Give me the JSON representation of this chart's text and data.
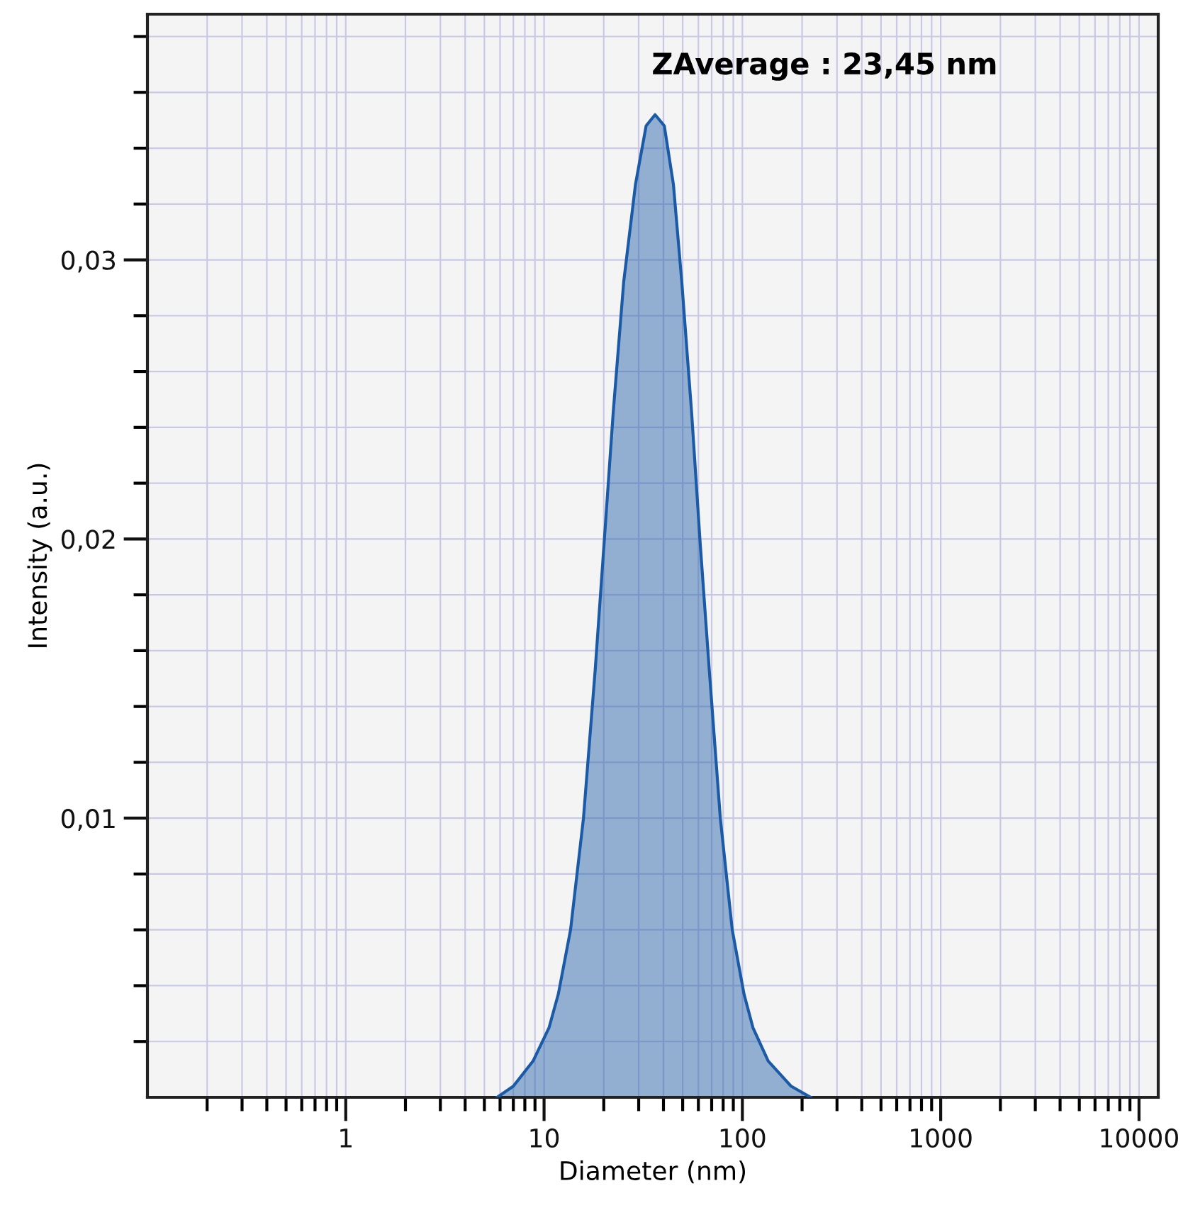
{
  "chart_data": {
    "type": "area",
    "xlabel": "Diameter (nm)",
    "ylabel": "Intensity (a.u.)",
    "annotations": [
      "ZAverage : 23,45 nm"
    ],
    "log": "x",
    "grid": true,
    "xlim": [
      0.1,
      12500
    ],
    "ylim": [
      0,
      0.0388
    ],
    "xticks": [
      {
        "value": 0.2,
        "label": null
      },
      {
        "value": 0.3,
        "label": null
      },
      {
        "value": 0.4,
        "label": null
      },
      {
        "value": 0.5,
        "label": null
      },
      {
        "value": 0.6,
        "label": null
      },
      {
        "value": 0.7,
        "label": null
      },
      {
        "value": 0.8,
        "label": null
      },
      {
        "value": 0.9,
        "label": null
      },
      1,
      {
        "value": 2,
        "label": null
      },
      {
        "value": 3,
        "label": null
      },
      {
        "value": 4,
        "label": null
      },
      {
        "value": 5,
        "label": null
      },
      {
        "value": 6,
        "label": null
      },
      {
        "value": 7,
        "label": null
      },
      {
        "value": 8,
        "label": null
      },
      {
        "value": 9,
        "label": null
      },
      10,
      {
        "value": 20,
        "label": null
      },
      {
        "value": 30,
        "label": null
      },
      {
        "value": 40,
        "label": null
      },
      {
        "value": 50,
        "label": null
      },
      {
        "value": 60,
        "label": null
      },
      {
        "value": 70,
        "label": null
      },
      {
        "value": 80,
        "label": null
      },
      {
        "value": 90,
        "label": null
      },
      100,
      {
        "value": 200,
        "label": null
      },
      {
        "value": 300,
        "label": null
      },
      {
        "value": 400,
        "label": null
      },
      {
        "value": 500,
        "label": null
      },
      {
        "value": 600,
        "label": null
      },
      {
        "value": 700,
        "label": null
      },
      {
        "value": 800,
        "label": null
      },
      {
        "value": 900,
        "label": null
      },
      1000,
      {
        "value": 2000,
        "label": null
      },
      {
        "value": 3000,
        "label": null
      },
      {
        "value": 4000,
        "label": null
      },
      {
        "value": 5000,
        "label": null
      },
      {
        "value": 6000,
        "label": null
      },
      {
        "value": 7000,
        "label": null
      },
      {
        "value": 8000,
        "label": null
      },
      {
        "value": 9000,
        "label": null
      },
      10000
    ],
    "yticks": [
      {
        "value": 0.002,
        "label": null
      },
      {
        "value": 0.004,
        "label": null
      },
      {
        "value": 0.006,
        "label": null
      },
      {
        "value": 0.008,
        "label": null
      },
      {
        "value": 0.01,
        "label": "0,01"
      },
      {
        "value": 0.012,
        "label": null
      },
      {
        "value": 0.014,
        "label": null
      },
      {
        "value": 0.016,
        "label": null
      },
      {
        "value": 0.018,
        "label": null
      },
      {
        "value": 0.02,
        "label": "0,02"
      },
      {
        "value": 0.022,
        "label": null
      },
      {
        "value": 0.024,
        "label": null
      },
      {
        "value": 0.026,
        "label": null
      },
      {
        "value": 0.028,
        "label": null
      },
      {
        "value": 0.03,
        "label": "0,03"
      },
      {
        "value": 0.032,
        "label": null
      },
      {
        "value": 0.034,
        "label": null
      },
      {
        "value": 0.036,
        "label": null
      },
      {
        "value": 0.038,
        "label": null
      }
    ],
    "x": [
      5.8,
      7.0,
      8.8,
      10.6,
      11.8,
      13.6,
      15.8,
      18.1,
      20.1,
      22.3,
      25.2,
      28.9,
      32.7,
      36.3,
      40.4,
      44.9,
      49.5,
      55.5,
      61.2,
      68.1,
      77.4,
      88.9,
      101.9,
      113,
      135,
      176,
      221
    ],
    "series": [
      {
        "color": "#1a5aa6",
        "values": [
          0,
          0.0004,
          0.0013,
          0.0025,
          0.0037,
          0.006,
          0.01,
          0.0153,
          0.0199,
          0.0245,
          0.0292,
          0.0327,
          0.0348,
          0.0352,
          0.0348,
          0.0327,
          0.0292,
          0.0245,
          0.0199,
          0.0153,
          0.01,
          0.006,
          0.0037,
          0.0025,
          0.0013,
          0.0004,
          0
        ]
      }
    ]
  }
}
